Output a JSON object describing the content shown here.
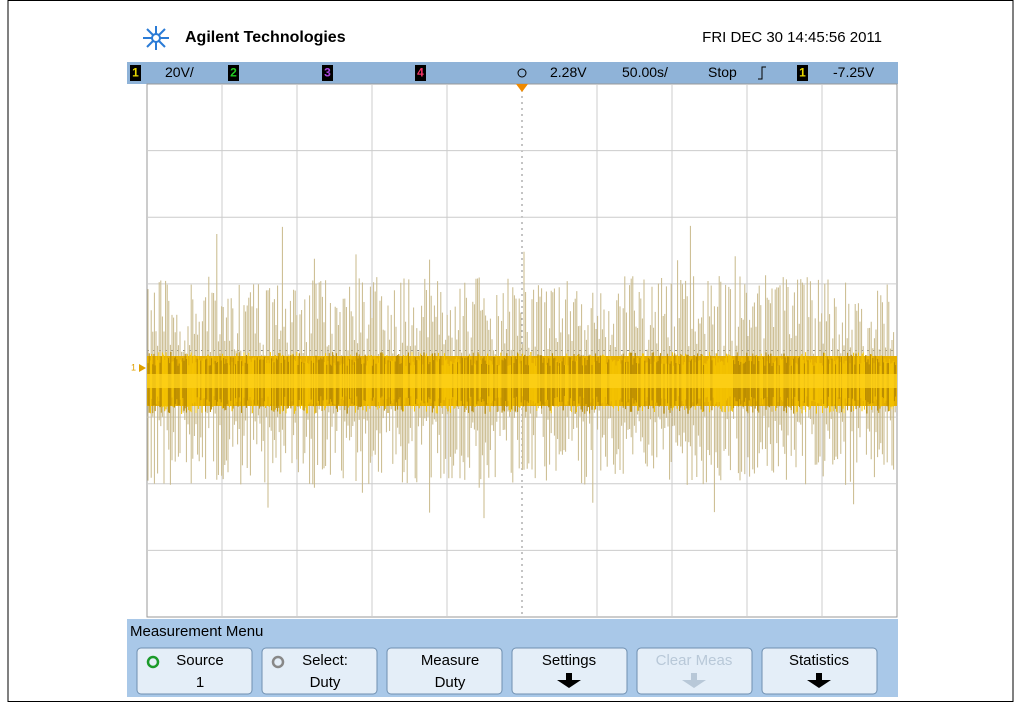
{
  "header": {
    "brand": "Agilent Technologies",
    "datetime": "FRI DEC 30 14:45:56 2011"
  },
  "status_bar": {
    "channels": [
      {
        "label": "1",
        "scale": "20V/",
        "color": "#e8d800"
      },
      {
        "label": "2",
        "color": "#22cc22"
      },
      {
        "label": "3",
        "color": "#aa44dd"
      },
      {
        "label": "4",
        "color": "#ee3366"
      }
    ],
    "trigger_level": "2.28V",
    "timebase": "50.00s/",
    "run_state": "Stop",
    "trigger_source": "1",
    "trigger_offset": "-7.25V"
  },
  "graticule": {
    "channel_marker": "1"
  },
  "menu": {
    "title": "Measurement Menu",
    "buttons": [
      {
        "label": "Source",
        "value": "1"
      },
      {
        "label": "Select:",
        "value": "Duty"
      },
      {
        "label": "Measure",
        "value": "Duty"
      },
      {
        "label": "Settings"
      },
      {
        "label": "Clear Meas",
        "disabled": true
      },
      {
        "label": "Statistics"
      }
    ]
  }
}
